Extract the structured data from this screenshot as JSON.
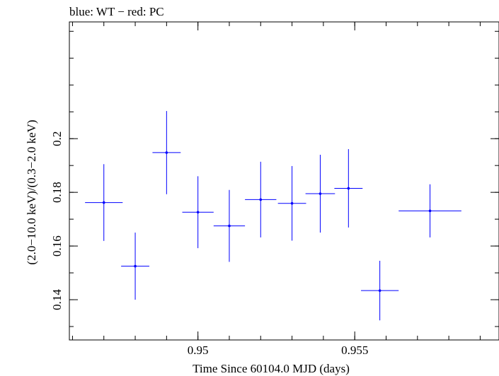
{
  "chart_data": {
    "type": "scatter",
    "title": "blue: WT − red: PC",
    "xlabel": "Time Since 60104.0 MJD (days)",
    "ylabel": "(2.0−10.0 keV)/(0.3−2.0 keV)",
    "xlim": [
      0.9459,
      0.9596
    ],
    "ylim": [
      0.125,
      0.2435
    ],
    "x_ticks_major": [
      {
        "value": 0.95,
        "label": "0.95"
      },
      {
        "value": 0.955,
        "label": "0.955"
      }
    ],
    "y_ticks_major": [
      {
        "value": 0.14,
        "label": "0.14"
      },
      {
        "value": 0.16,
        "label": "0.16"
      },
      {
        "value": 0.18,
        "label": "0.18"
      },
      {
        "value": 0.2,
        "label": "0.2"
      }
    ],
    "x_minor_step": 0.001,
    "y_minor_step": 0.01,
    "grid": false,
    "series": [
      {
        "color": "#0000ff",
        "points": [
          {
            "x": 0.947,
            "xerr": 0.0006,
            "y": 0.1762,
            "yerr": 0.0143
          },
          {
            "x": 0.948,
            "xerr": 0.00045,
            "y": 0.1525,
            "yerr": 0.0125
          },
          {
            "x": 0.949,
            "xerr": 0.00045,
            "y": 0.1948,
            "yerr": 0.0155
          },
          {
            "x": 0.95,
            "xerr": 0.0005,
            "y": 0.1726,
            "yerr": 0.0134
          },
          {
            "x": 0.951,
            "xerr": 0.0005,
            "y": 0.1675,
            "yerr": 0.0134
          },
          {
            "x": 0.952,
            "xerr": 0.0005,
            "y": 0.1773,
            "yerr": 0.0141
          },
          {
            "x": 0.953,
            "xerr": 0.00045,
            "y": 0.1759,
            "yerr": 0.0139
          },
          {
            "x": 0.9539,
            "xerr": 0.00047,
            "y": 0.1795,
            "yerr": 0.0145
          },
          {
            "x": 0.9548,
            "xerr": 0.00045,
            "y": 0.1815,
            "yerr": 0.0146
          },
          {
            "x": 0.9558,
            "xerr": 0.0006,
            "y": 0.1434,
            "yerr": 0.0111
          },
          {
            "x": 0.9574,
            "xerr": 0.001,
            "y": 0.1731,
            "yerr": 0.0099
          }
        ]
      }
    ]
  }
}
